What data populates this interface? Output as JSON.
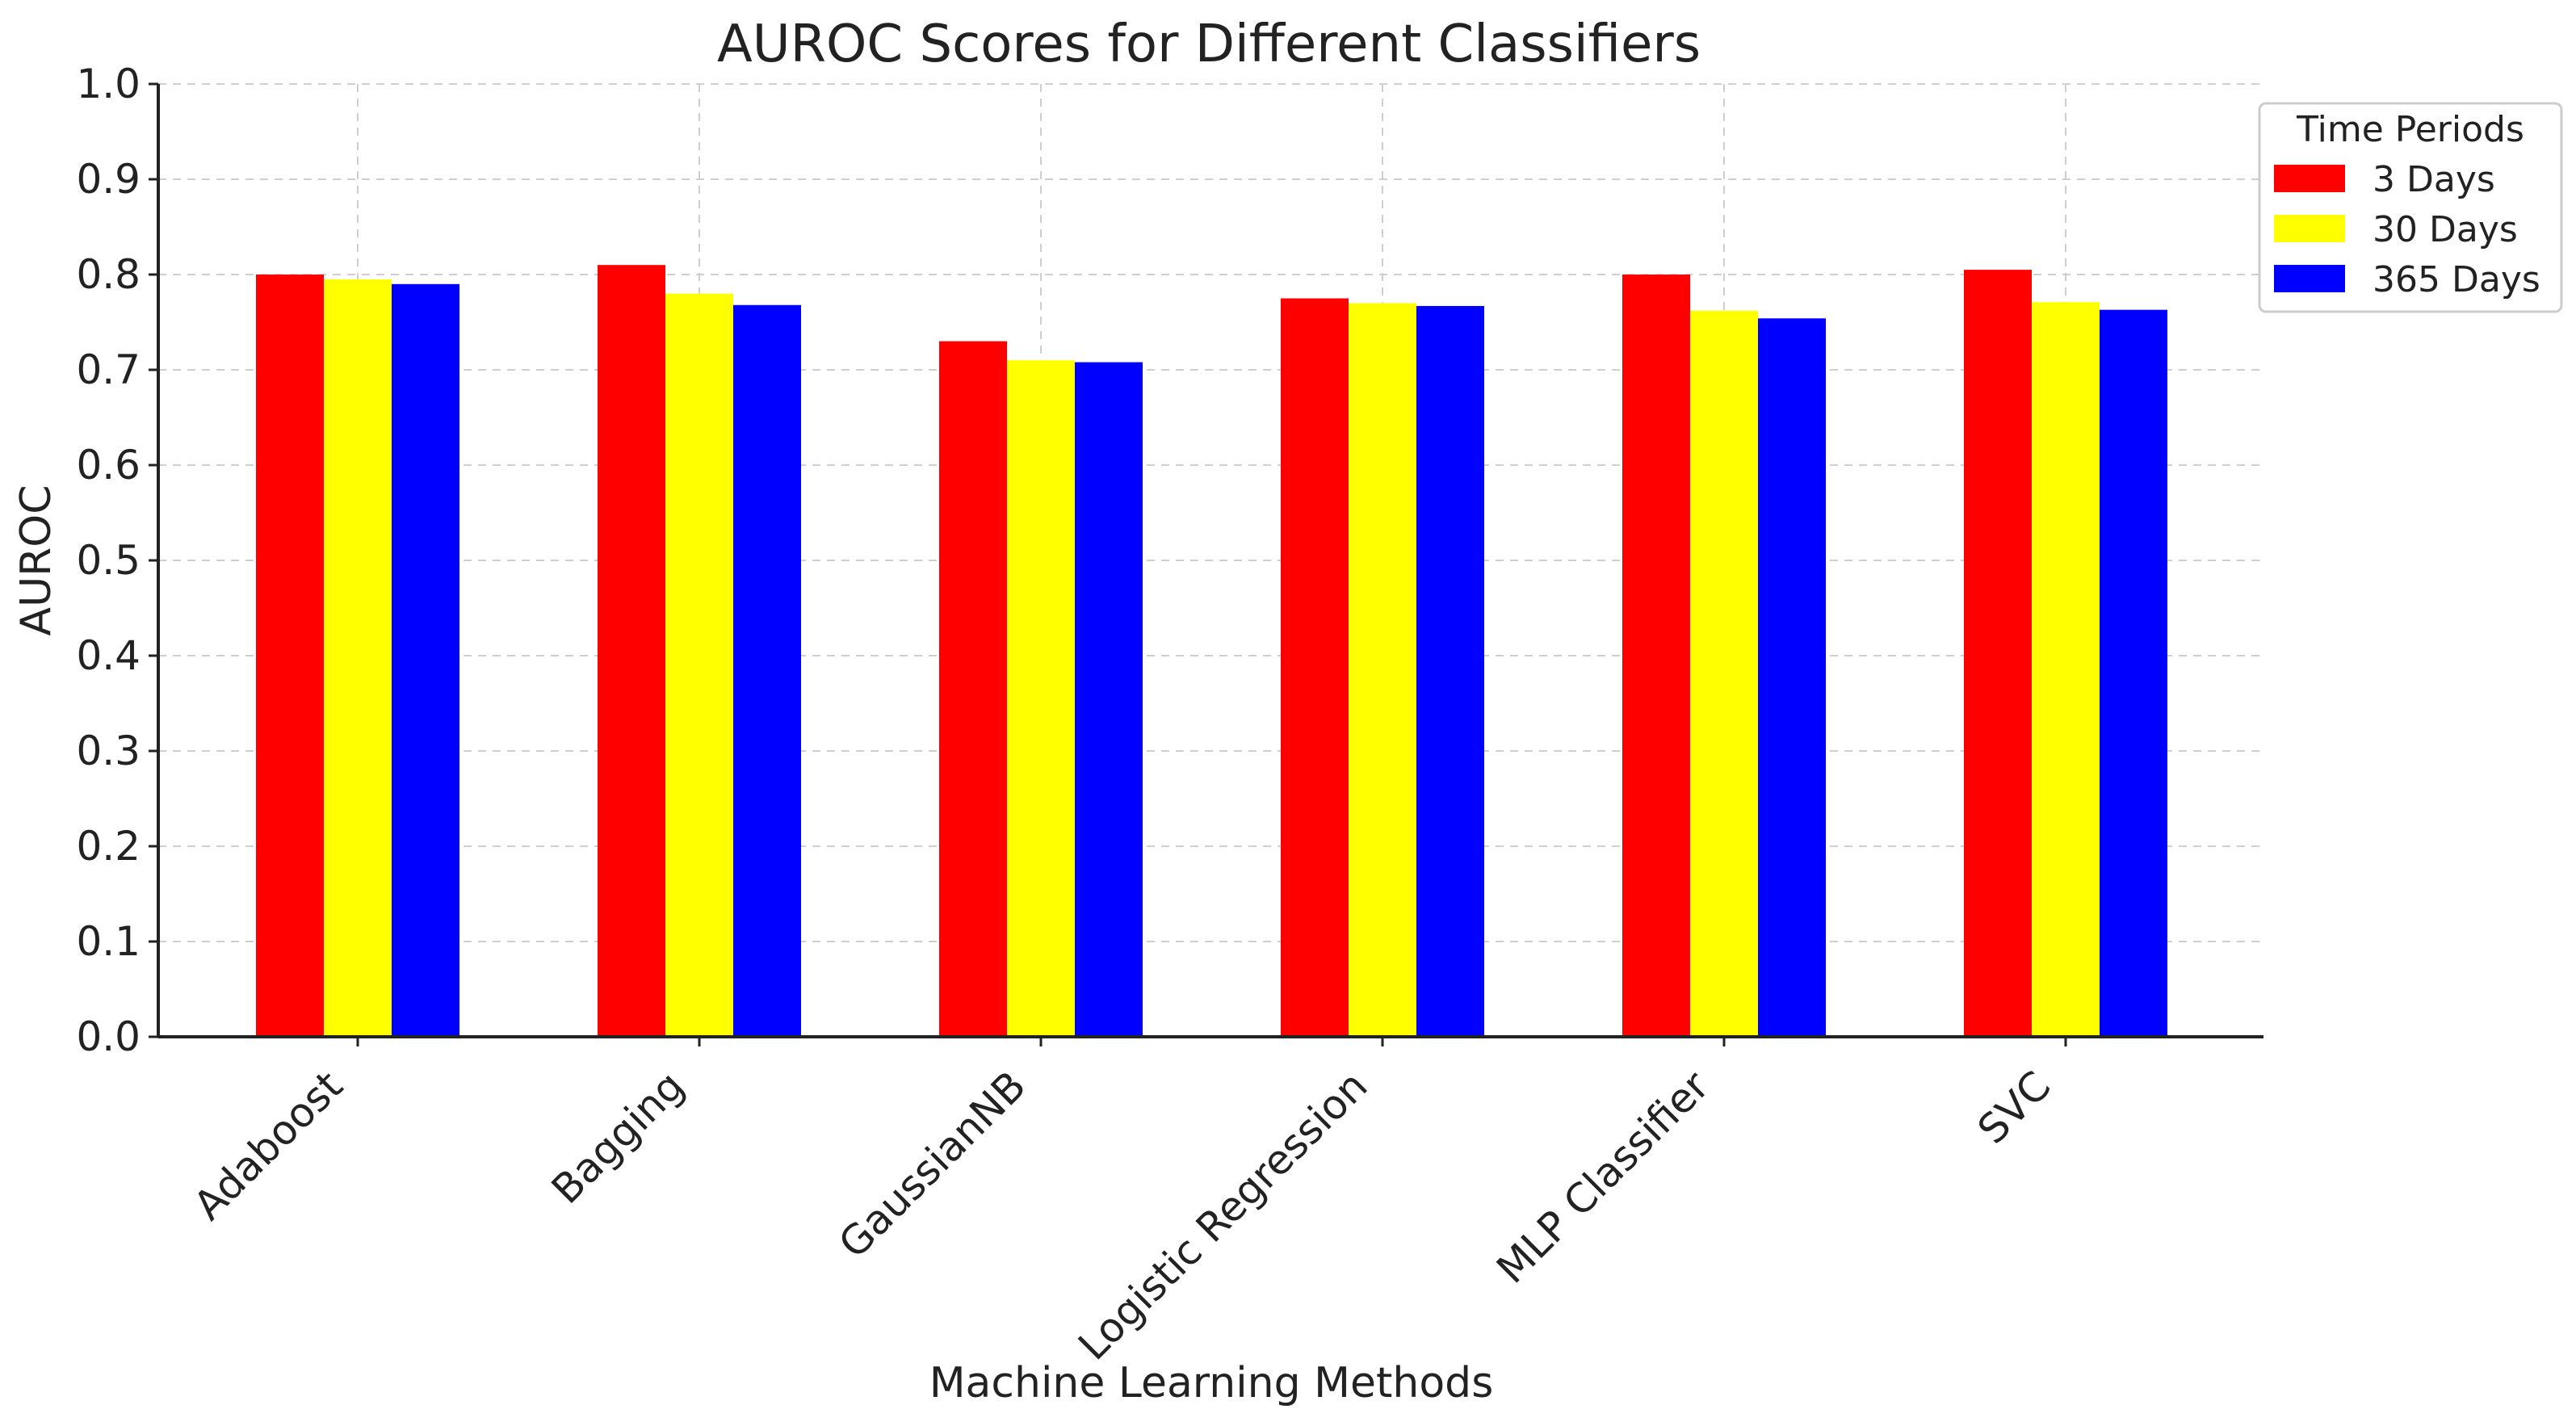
{
  "chart_data": {
    "type": "bar",
    "title": "AUROC Scores for Different Classifiers",
    "xlabel": "Machine Learning Methods",
    "ylabel": "AUROC",
    "categories": [
      "Adaboost",
      "Bagging",
      "GaussianNB",
      "Logistic Regression",
      "MLP Classifier",
      "SVC"
    ],
    "series": [
      {
        "name": "3 Days",
        "color": "#ff0000",
        "values": [
          0.8,
          0.81,
          0.73,
          0.775,
          0.8,
          0.805
        ]
      },
      {
        "name": "30 Days",
        "color": "#ffff00",
        "values": [
          0.795,
          0.78,
          0.71,
          0.77,
          0.762,
          0.771
        ]
      },
      {
        "name": "365 Days",
        "color": "#0000ff",
        "values": [
          0.79,
          0.768,
          0.708,
          0.767,
          0.754,
          0.763
        ]
      }
    ],
    "ylim": [
      0,
      1.0
    ],
    "yticks": [
      "0.0",
      "0.1",
      "0.2",
      "0.3",
      "0.4",
      "0.5",
      "0.6",
      "0.7",
      "0.8",
      "0.9",
      "1.0"
    ],
    "grid": true,
    "legend": {
      "title": "Time Periods",
      "position": "outside-top-right"
    }
  }
}
